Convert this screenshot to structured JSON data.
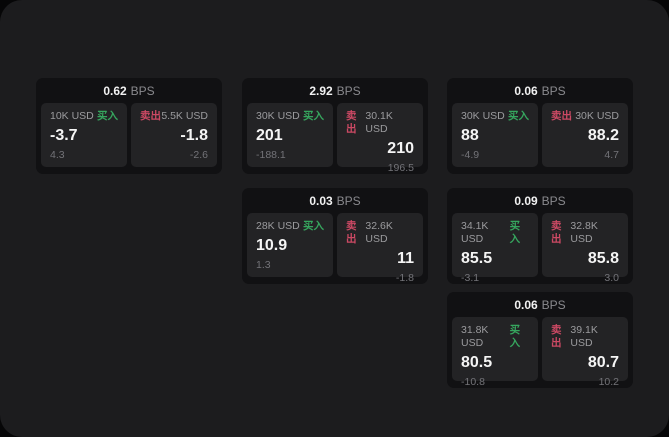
{
  "labels": {
    "bps_unit": "BPS",
    "buy": "买入",
    "sell": "卖出"
  },
  "colors": {
    "panel_bg": "#1c1c1e",
    "card_bg": "#111113",
    "cell_bg": "#232325",
    "buy_green": "#36a65e",
    "sell_red": "#cc4964"
  },
  "cards": [
    {
      "bps": "0.62",
      "buy": {
        "size": "10K USD",
        "price": "-3.7",
        "sub": "4.3"
      },
      "sell": {
        "size": "5.5K USD",
        "price": "-1.8",
        "sub": "-2.6"
      }
    },
    {
      "bps": "2.92",
      "buy": {
        "size": "30K USD",
        "price": "201",
        "sub": "-188.1"
      },
      "sell": {
        "size": "30.1K USD",
        "price": "210",
        "sub": "196.5"
      }
    },
    {
      "bps": "0.06",
      "buy": {
        "size": "30K USD",
        "price": "88",
        "sub": "-4.9"
      },
      "sell": {
        "size": "30K USD",
        "price": "88.2",
        "sub": "4.7"
      }
    },
    {
      "bps": "0.03",
      "buy": {
        "size": "28K USD",
        "price": "10.9",
        "sub": "1.3"
      },
      "sell": {
        "size": "32.6K USD",
        "price": "11",
        "sub": "-1.8"
      }
    },
    {
      "bps": "0.09",
      "buy": {
        "size": "34.1K USD",
        "price": "85.5",
        "sub": "-3.1"
      },
      "sell": {
        "size": "32.8K USD",
        "price": "85.8",
        "sub": "3.0"
      }
    },
    {
      "bps": "0.06",
      "buy": {
        "size": "31.8K USD",
        "price": "80.5",
        "sub": "-10.8"
      },
      "sell": {
        "size": "39.1K USD",
        "price": "80.7",
        "sub": "10.2"
      }
    }
  ]
}
